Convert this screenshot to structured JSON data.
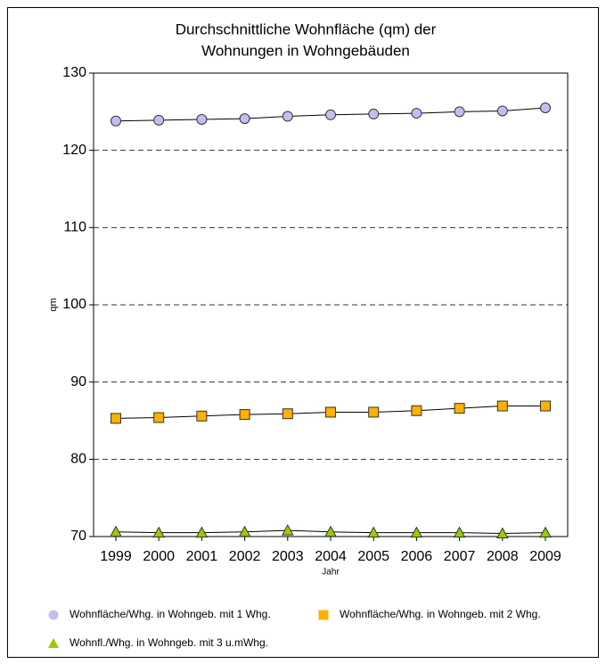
{
  "chart_data": {
    "type": "line",
    "title": [
      "Durchschnittliche Wohnfläche (qm) der",
      "Wohnungen in Wohngebäuden"
    ],
    "x_label": "Jahr",
    "y_label": "qm",
    "categories": [
      "1999",
      "2000",
      "2001",
      "2002",
      "2003",
      "2004",
      "2005",
      "2006",
      "2007",
      "2008",
      "2009"
    ],
    "series": [
      {
        "name": "Wohnfläche/Whg. in Wohngeb. mit 1 Whg.",
        "color": "#c0c0f0",
        "marker": "circle",
        "values": [
          123.8,
          123.9,
          124.0,
          124.1,
          124.4,
          124.6,
          124.7,
          124.8,
          125.0,
          125.1,
          125.5
        ]
      },
      {
        "name": "Wohnfläche/Whg. in Wohngeb. mit 2 Whg.",
        "color": "#ffb000",
        "marker": "square",
        "values": [
          85.3,
          85.4,
          85.6,
          85.8,
          85.9,
          86.1,
          86.1,
          86.3,
          86.6,
          86.9,
          86.9
        ]
      },
      {
        "name": "Wohnfl./Whg. in Wohngeb. mit 3 u.mWhg.",
        "color": "#99cc00",
        "marker": "triangle",
        "values": [
          70.6,
          70.5,
          70.5,
          70.6,
          70.8,
          70.6,
          70.5,
          70.5,
          70.5,
          70.4,
          70.5
        ]
      }
    ],
    "ylim": [
      70,
      130
    ],
    "yticks": [
      70,
      80,
      90,
      100,
      110,
      120,
      130
    ],
    "grid": true
  }
}
